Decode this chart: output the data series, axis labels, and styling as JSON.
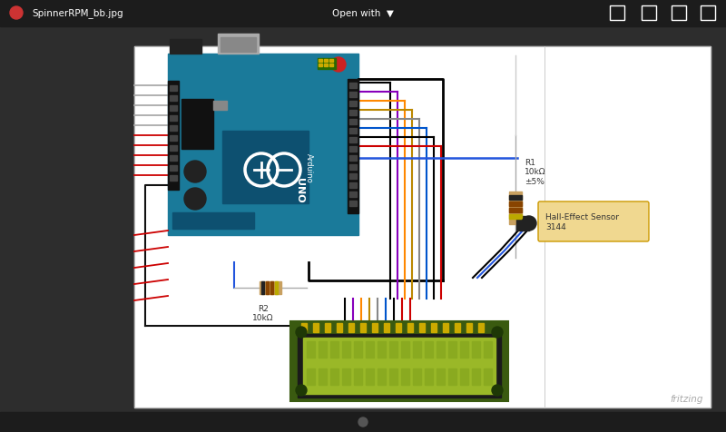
{
  "bg_outer": "#2d2d2d",
  "bg_inner": "#ffffff",
  "title_bar_color": "#1c1c1c",
  "title_text": "SpinnerRPM_bb.jpg",
  "title_open_with": "Open with  ▼",
  "fritzing_text": "fritzing",
  "arduino_color": "#1a7a9a",
  "arduino_dark": "#0d5570",
  "lcd_outer_color": "#3a5a10",
  "lcd_inner_color": "#6a8a18",
  "lcd_screen_color": "#9ab828",
  "sensor_label_color": "#f0d890",
  "sensor_label_text": "Hall-Effect Sensor\n3144",
  "r1_text": "R1\n10kΩ\n±5%",
  "r2_text": "R2\n10kΩ",
  "resistor_color": "#c8a060"
}
